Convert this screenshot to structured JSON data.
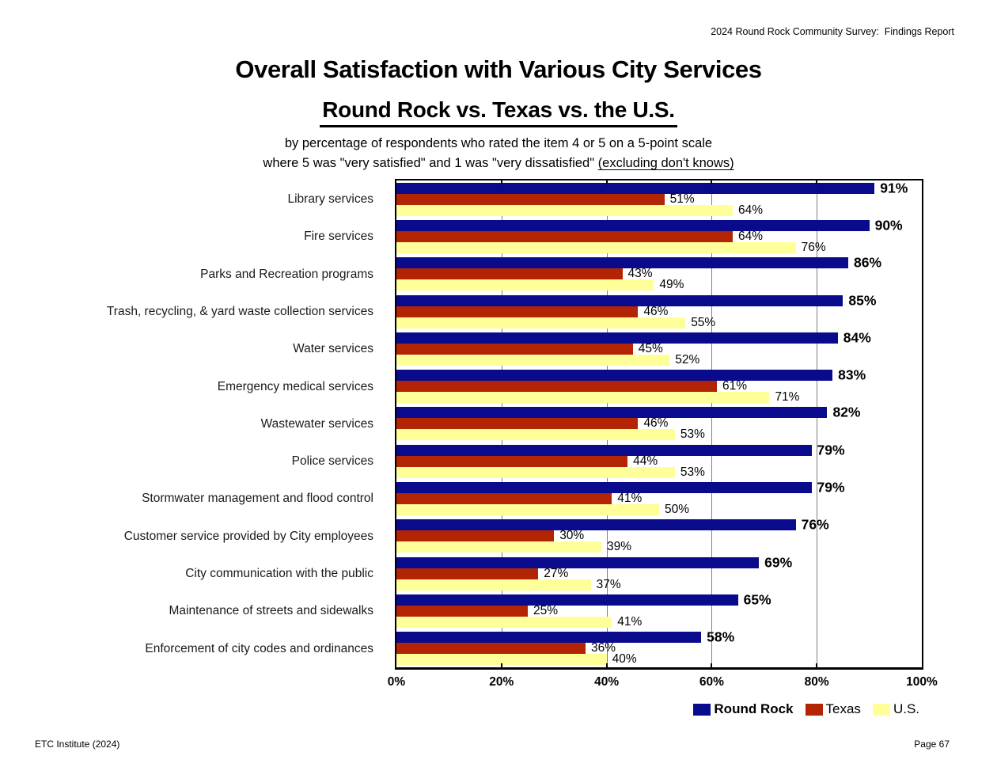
{
  "page": {
    "header_right": "2024 Round Rock Community Survey:  Findings Report",
    "footer_left": "ETC Institute (2024)",
    "footer_right": "Page 67"
  },
  "chart_data": {
    "type": "bar",
    "orientation": "horizontal",
    "title": "Overall Satisfaction with Various City Services",
    "subtitle": "Round Rock vs. Texas vs. the U.S.",
    "note_line1": "by percentage of respondents who rated the item 4 or 5 on a 5-point scale",
    "note_line2_plain": "where 5 was \"very satisfied\" and 1 was \"very dissatisfied\" ",
    "note_line2_underlined": "(excluding don't knows)",
    "categories": [
      "Library services",
      "Fire services",
      "Parks and Recreation programs",
      "Trash, recycling, & yard waste collection services",
      "Water services",
      "Emergency medical services",
      "Wastewater services",
      "Police services",
      "Stormwater management and flood control",
      "Customer service provided by City employees",
      "City communication with the public",
      "Maintenance of streets and sidewalks",
      "Enforcement of city codes and ordinances"
    ],
    "series": [
      {
        "name": "Round Rock",
        "color": "#0a0a8c",
        "values": [
          91,
          90,
          86,
          85,
          84,
          83,
          82,
          79,
          79,
          76,
          69,
          65,
          58
        ]
      },
      {
        "name": "Texas",
        "color": "#b22403",
        "values": [
          51,
          64,
          43,
          46,
          45,
          61,
          46,
          44,
          41,
          30,
          27,
          25,
          36
        ]
      },
      {
        "name": "U.S.",
        "color": "#ffff99",
        "values": [
          64,
          76,
          49,
          55,
          52,
          71,
          53,
          53,
          50,
          39,
          37,
          41,
          40
        ]
      }
    ],
    "value_suffix": "%",
    "xlim": [
      0,
      100
    ],
    "x_ticks": [
      "0%",
      "20%",
      "40%",
      "60%",
      "80%",
      "100%"
    ],
    "gridline_percents": [
      20,
      40,
      60,
      80
    ],
    "grid": true,
    "legend_position": "bottom-right",
    "gridline_color": "#808080",
    "axis_color": "#000000"
  }
}
